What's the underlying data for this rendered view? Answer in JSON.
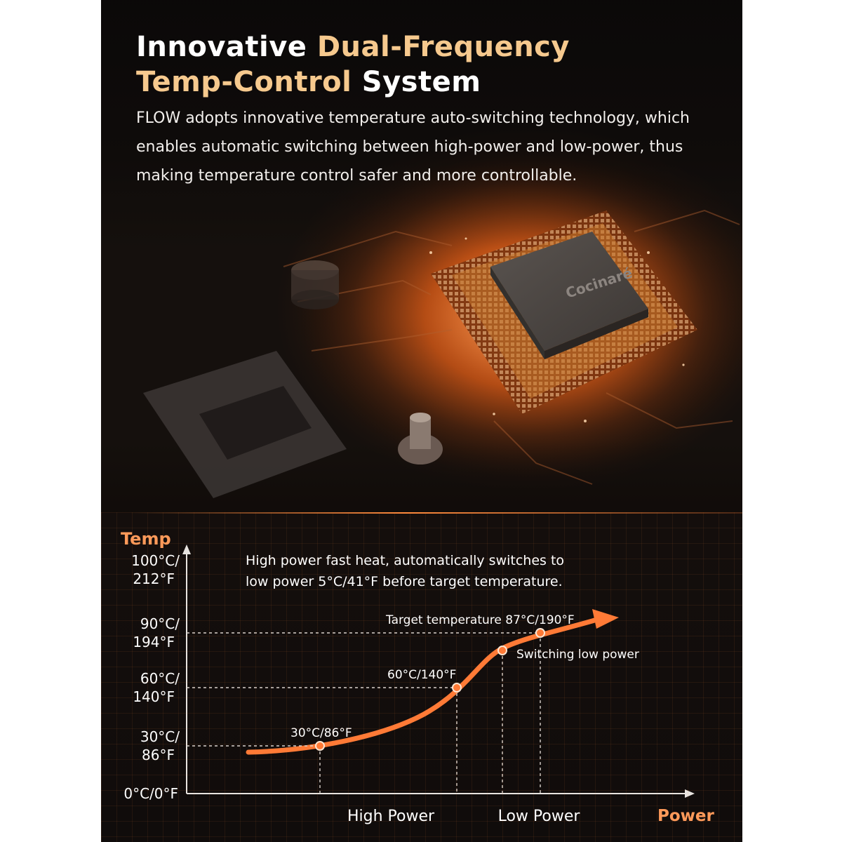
{
  "headline": {
    "part1": "Innovative ",
    "accent1": "Dual-Frequency",
    "accent2": "Temp-Control",
    "part2": " System"
  },
  "intro": "FLOW adopts innovative temperature auto-switching technology, which enables automatic switching between high-power and low-power, thus making temperature control safer and more controllable.",
  "chip_brand": "Cocinaré",
  "colors": {
    "accent": "#f6c98e",
    "curve": "#ff7a36",
    "axis_title": "#ff9a5a"
  },
  "chart_data": {
    "type": "line",
    "ylabel": "Temp",
    "xlabel": "Power",
    "note_line1": "High power fast heat, automatically switches to",
    "note_line2": "low power 5°C/41°F before target temperature.",
    "y_ticks": [
      {
        "value": 0,
        "line1": "0°C/0°F",
        "line2": ""
      },
      {
        "value": 30,
        "line1": "30°C/",
        "line2": "86°F"
      },
      {
        "value": 60,
        "line1": "60°C/",
        "line2": "140°F"
      },
      {
        "value": 90,
        "line1": "90°C/",
        "line2": "194°F"
      },
      {
        "value": 100,
        "line1": "100°C/",
        "line2": "212°F"
      }
    ],
    "x_labels": [
      "High Power",
      "Low Power"
    ],
    "points": [
      {
        "label": "30°C/86°F",
        "temp": 30
      },
      {
        "label": "60°C/140°F",
        "temp": 60
      },
      {
        "label": "Switching low power",
        "temp": 82
      },
      {
        "label": "Target temperature 87°C/190°F",
        "temp": 87
      }
    ]
  }
}
